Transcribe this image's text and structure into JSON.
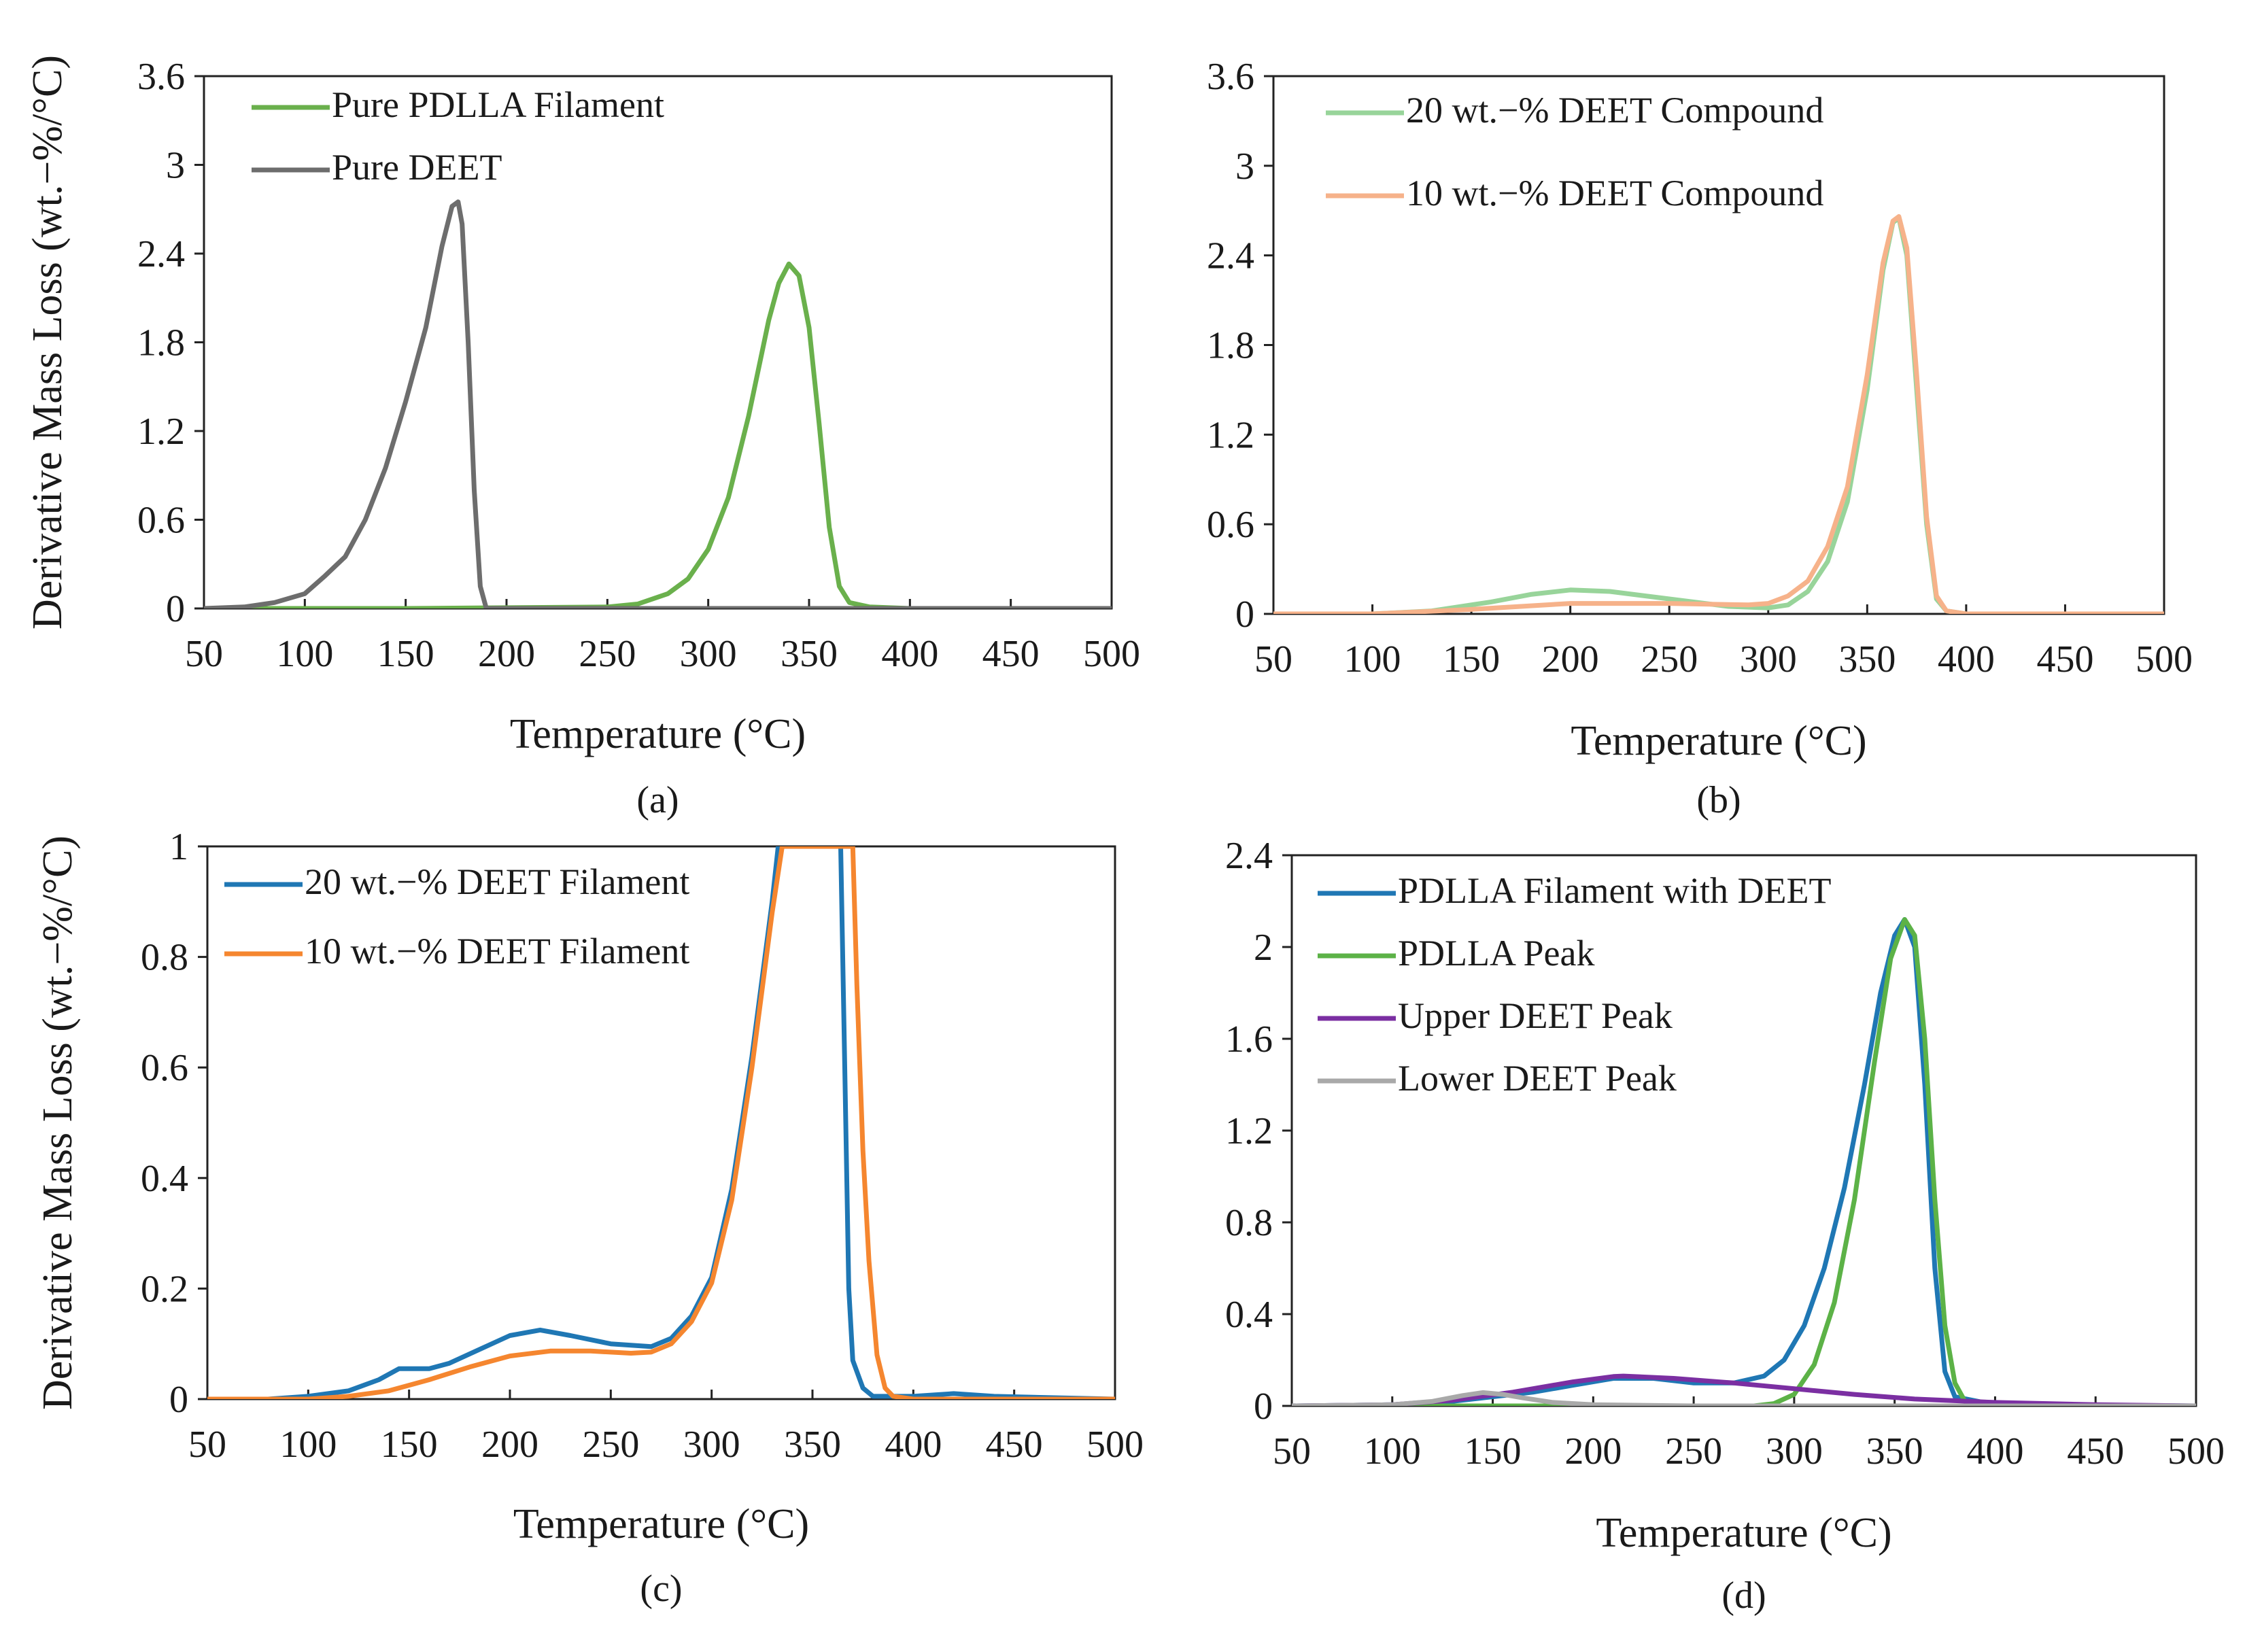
{
  "figure": {
    "description": "Derivative mass loss (DTG) curves, four panels",
    "colors": {
      "pure_pdlla": "#6ab04c",
      "pure_deet": "#6d6d6d",
      "compound_20": "#98d49a",
      "compound_10": "#f6b28a",
      "filament_20": "#1f77b4",
      "filament_10": "#f5862f",
      "d_filament": "#1f77b4",
      "d_pdlla": "#5cb247",
      "d_upper": "#7b2fa2",
      "d_lower": "#a9a9a9"
    }
  },
  "chart_data": [
    {
      "id": "a",
      "type": "line",
      "caption": "(a)",
      "xlabel": "Temperature (°C)",
      "ylabel": "Derivative Mass Loss (wt.−%/°C)",
      "xlim": [
        50,
        500
      ],
      "ylim": [
        0,
        3.6
      ],
      "xticks": [
        50,
        100,
        150,
        200,
        250,
        300,
        350,
        400,
        450,
        500
      ],
      "yticks": [
        0,
        0.6,
        1.2,
        1.8,
        2.4,
        3,
        3.6
      ],
      "ytick_labels": [
        "0",
        "0.6",
        "1.2",
        "1.8",
        "2.4",
        "3",
        "3.6"
      ],
      "legend_position": "top-left",
      "series": [
        {
          "name": "Pure PDLLA Filament",
          "color_key": "pure_pdlla",
          "x": [
            50,
            150,
            250,
            265,
            280,
            290,
            300,
            310,
            320,
            330,
            335,
            340,
            345,
            350,
            355,
            360,
            365,
            370,
            380,
            400,
            500
          ],
          "y": [
            0,
            0,
            0.01,
            0.03,
            0.1,
            0.2,
            0.4,
            0.75,
            1.3,
            1.95,
            2.2,
            2.33,
            2.25,
            1.9,
            1.25,
            0.55,
            0.15,
            0.04,
            0.01,
            0,
            0
          ]
        },
        {
          "name": "Pure DEET",
          "color_key": "pure_deet",
          "x": [
            50,
            70,
            85,
            100,
            110,
            120,
            130,
            140,
            150,
            160,
            168,
            173,
            176,
            178,
            181,
            184,
            187,
            190,
            200,
            300,
            500
          ],
          "y": [
            0,
            0.01,
            0.04,
            0.1,
            0.22,
            0.35,
            0.6,
            0.95,
            1.4,
            1.9,
            2.45,
            2.72,
            2.75,
            2.6,
            1.8,
            0.8,
            0.15,
            0,
            0,
            0,
            0
          ]
        }
      ]
    },
    {
      "id": "b",
      "type": "line",
      "caption": "(b)",
      "xlabel": "Temperature (°C)",
      "ylabel": "",
      "xlim": [
        50,
        500
      ],
      "ylim": [
        0,
        3.6
      ],
      "xticks": [
        50,
        100,
        150,
        200,
        250,
        300,
        350,
        400,
        450,
        500
      ],
      "yticks": [
        0,
        0.6,
        1.2,
        1.8,
        2.4,
        3,
        3.6
      ],
      "ytick_labels": [
        "0",
        "0.6",
        "1.2",
        "1.8",
        "2.4",
        "3",
        "3.6"
      ],
      "legend_position": "top-left",
      "series": [
        {
          "name": "20 wt.−% DEET Compound",
          "color_key": "compound_20",
          "x": [
            50,
            100,
            130,
            160,
            180,
            200,
            220,
            250,
            280,
            300,
            310,
            320,
            330,
            340,
            350,
            358,
            363,
            366,
            370,
            375,
            380,
            385,
            390,
            400,
            500
          ],
          "y": [
            0,
            0,
            0.02,
            0.08,
            0.13,
            0.16,
            0.15,
            0.1,
            0.05,
            0.04,
            0.06,
            0.15,
            0.35,
            0.75,
            1.5,
            2.3,
            2.62,
            2.65,
            2.4,
            1.5,
            0.6,
            0.1,
            0.02,
            0,
            0
          ]
        },
        {
          "name": "10 wt.−% DEET Compound",
          "color_key": "compound_10",
          "x": [
            50,
            100,
            150,
            200,
            250,
            290,
            300,
            310,
            320,
            330,
            340,
            350,
            358,
            363,
            366,
            370,
            375,
            380,
            385,
            390,
            400,
            500
          ],
          "y": [
            0,
            0,
            0.03,
            0.07,
            0.07,
            0.06,
            0.07,
            0.12,
            0.22,
            0.45,
            0.85,
            1.6,
            2.35,
            2.63,
            2.66,
            2.45,
            1.6,
            0.65,
            0.12,
            0.02,
            0,
            0
          ]
        }
      ]
    },
    {
      "id": "c",
      "type": "line",
      "caption": "(c)",
      "xlabel": "Temperature (°C)",
      "ylabel": "Derivative Mass Loss (wt.−%/°C)",
      "xlim": [
        50,
        500
      ],
      "ylim": [
        0,
        1
      ],
      "xticks": [
        50,
        100,
        150,
        200,
        250,
        300,
        350,
        400,
        450,
        500
      ],
      "yticks": [
        0,
        0.2,
        0.4,
        0.6,
        0.8,
        1
      ],
      "ytick_labels": [
        "0",
        "0.2",
        "0.4",
        "0.6",
        "0.8",
        "1"
      ],
      "legend_position": "top-left",
      "series": [
        {
          "name": "20 wt.−% DEET Filament",
          "color_key": "filament_20",
          "x": [
            50,
            80,
            100,
            120,
            135,
            145,
            150,
            160,
            170,
            185,
            200,
            215,
            230,
            250,
            270,
            280,
            290,
            300,
            310,
            320,
            330,
            333,
            364,
            366,
            368,
            370,
            375,
            380,
            400,
            420,
            440,
            500
          ],
          "y": [
            0,
            0,
            0.005,
            0.015,
            0.035,
            0.055,
            0.055,
            0.055,
            0.065,
            0.09,
            0.115,
            0.125,
            0.115,
            0.1,
            0.095,
            0.11,
            0.15,
            0.22,
            0.38,
            0.62,
            0.9,
            1.0,
            1.0,
            0.6,
            0.2,
            0.07,
            0.02,
            0.005,
            0.005,
            0.01,
            0.005,
            0
          ]
        },
        {
          "name": "10 wt.−% DEET Filament",
          "color_key": "filament_10",
          "x": [
            50,
            100,
            120,
            140,
            160,
            180,
            200,
            220,
            240,
            260,
            270,
            280,
            290,
            300,
            310,
            320,
            330,
            335,
            370,
            372,
            375,
            378,
            382,
            386,
            390,
            400,
            500
          ],
          "y": [
            0,
            0,
            0.005,
            0.015,
            0.035,
            0.058,
            0.078,
            0.087,
            0.087,
            0.083,
            0.085,
            0.1,
            0.14,
            0.21,
            0.36,
            0.6,
            0.88,
            1.0,
            1.0,
            0.75,
            0.45,
            0.25,
            0.08,
            0.02,
            0.005,
            0,
            0
          ]
        }
      ]
    },
    {
      "id": "d",
      "type": "line",
      "caption": "(d)",
      "xlabel": "Temperature (°C)",
      "ylabel": "",
      "xlim": [
        50,
        500
      ],
      "ylim": [
        0,
        2.4
      ],
      "xticks": [
        50,
        100,
        150,
        200,
        250,
        300,
        350,
        400,
        450,
        500
      ],
      "yticks": [
        0,
        0.4,
        0.8,
        1.2,
        1.6,
        2,
        2.4
      ],
      "ytick_labels": [
        "0",
        "0.4",
        "0.8",
        "1.2",
        "1.6",
        "2",
        "2.4"
      ],
      "legend_position": "top-left",
      "series": [
        {
          "name": "PDLLA Filament with DEET",
          "color_key": "d_filament",
          "x": [
            50,
            100,
            130,
            150,
            170,
            190,
            210,
            230,
            250,
            270,
            285,
            295,
            305,
            315,
            325,
            335,
            343,
            350,
            355,
            360,
            365,
            370,
            375,
            380,
            400,
            500
          ],
          "y": [
            0,
            0.005,
            0.02,
            0.04,
            0.06,
            0.09,
            0.12,
            0.12,
            0.1,
            0.1,
            0.13,
            0.2,
            0.35,
            0.6,
            0.95,
            1.4,
            1.8,
            2.05,
            2.12,
            2.0,
            1.4,
            0.6,
            0.15,
            0.04,
            0.005,
            0
          ]
        },
        {
          "name": "PDLLA Peak",
          "color_key": "d_pdlla",
          "x": [
            50,
            280,
            290,
            300,
            310,
            320,
            330,
            340,
            348,
            355,
            360,
            365,
            370,
            375,
            380,
            385,
            400,
            500
          ],
          "y": [
            0,
            0,
            0.01,
            0.05,
            0.18,
            0.45,
            0.9,
            1.5,
            1.95,
            2.12,
            2.05,
            1.6,
            0.9,
            0.35,
            0.1,
            0.02,
            0,
            0
          ]
        },
        {
          "name": "Upper DEET Peak",
          "color_key": "d_upper",
          "x": [
            50,
            100,
            130,
            160,
            190,
            210,
            215,
            240,
            270,
            300,
            330,
            360,
            400,
            450,
            500
          ],
          "y": [
            0,
            0.005,
            0.025,
            0.06,
            0.105,
            0.128,
            0.13,
            0.12,
            0.1,
            0.075,
            0.05,
            0.03,
            0.015,
            0.005,
            0
          ]
        },
        {
          "name": "Lower DEET Peak",
          "color_key": "d_lower",
          "x": [
            50,
            100,
            120,
            135,
            145,
            155,
            165,
            180,
            200,
            250,
            500
          ],
          "y": [
            0,
            0.005,
            0.02,
            0.045,
            0.058,
            0.05,
            0.035,
            0.015,
            0.005,
            0,
            0
          ]
        }
      ]
    }
  ]
}
